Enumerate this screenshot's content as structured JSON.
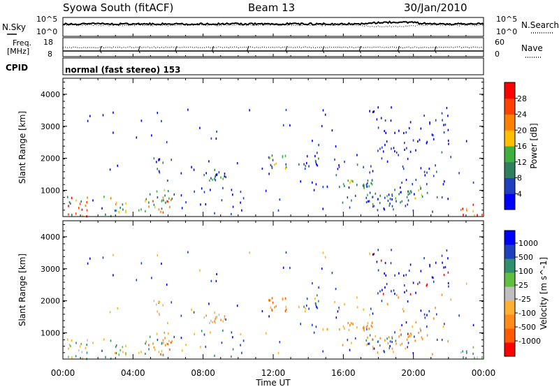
{
  "header": {
    "station": "Syowa South (fitACF)",
    "beam": "Beam 13",
    "date": "30/Jan/2010"
  },
  "panels": {
    "noise": {
      "left_label": "N.Sky",
      "right_label": "N.Search",
      "left_ticks": [
        "10^5",
        "10^0"
      ],
      "right_ticks": [
        "10^5",
        "10^0"
      ]
    },
    "freq": {
      "left_label_1": "Freq.",
      "left_label_2": "[MHz]",
      "right_label": "Nave",
      "left_ticks": [
        "18",
        "8"
      ],
      "right_ticks": [
        "60",
        "0"
      ]
    },
    "cpid": {
      "label": "CPID",
      "text": "normal (fast stereo) 153"
    }
  },
  "x_axis": {
    "label": "Time UT",
    "ticks": [
      "00:00",
      "04:00",
      "08:00",
      "12:00",
      "16:00",
      "20:00",
      "00:00"
    ]
  },
  "colors": {
    "power": [
      "#0000ff",
      "#1f3fbf",
      "#2f7f5f",
      "#3faf3f",
      "#ffbf00",
      "#ff8000",
      "#ff4000",
      "#ff0000"
    ],
    "velocity": [
      "#ff0000",
      "#ff5a00",
      "#ff8c1a",
      "#ffb030",
      "#bfbfbf",
      "#5fbf3f",
      "#2f8f6f",
      "#1f3fbf",
      "#0000ff"
    ]
  },
  "chart_data": [
    {
      "type": "heatmap",
      "name": "power",
      "ylabel": "Slant Range [km]",
      "ylim": [
        180,
        4500
      ],
      "yticks": [
        1000,
        2000,
        3000,
        4000
      ],
      "xlim": [
        0,
        24
      ],
      "colorbar_label": "Power [dB]",
      "colorbar_ticks": [
        "4",
        "8",
        "12",
        "16",
        "20",
        "24",
        "28"
      ],
      "colorbar_range": [
        0,
        32
      ]
    },
    {
      "type": "heatmap",
      "name": "velocity",
      "ylabel": "Slant Range [km]",
      "ylim": [
        180,
        4500
      ],
      "yticks": [
        1000,
        2000,
        3000,
        4000
      ],
      "xlim": [
        0,
        24
      ],
      "colorbar_label": "Velocity [m s^-1]",
      "colorbar_ticks": [
        "1000",
        "500",
        "100",
        "25",
        "-25",
        "-100",
        "-500",
        "-1000"
      ]
    }
  ]
}
